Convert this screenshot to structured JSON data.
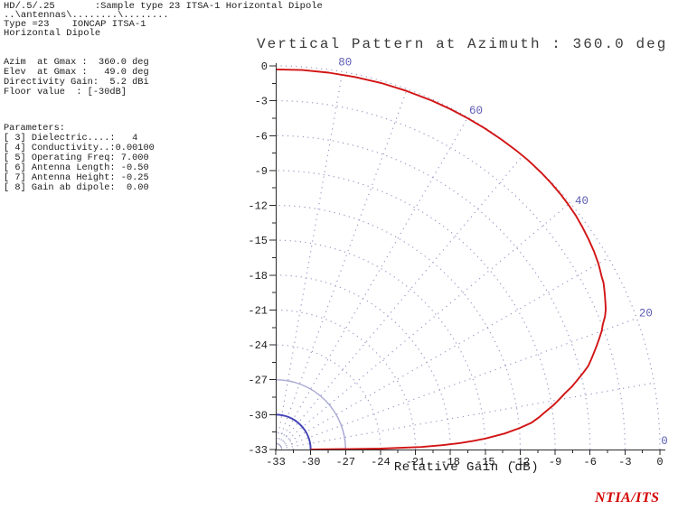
{
  "header": {
    "line1": "HD/.5/.25       :Sample type 23 ITSA-1 Horizontal Dipole",
    "line2": "..\\antennas\\........\\........",
    "line3": "Type =23    IONCAP ITSA-1",
    "line4": "Horizontal Dipole"
  },
  "info_panel": {
    "gain_lines": [
      "Azim  at Gmax :  360.0 deg",
      "Elev  at Gmax :   49.0 deg",
      "Directivity Gain:  5.2 dBi",
      "Floor value  : [-30dB]"
    ],
    "parameters_title": "Parameters:",
    "parameters": [
      "[ 3] Dielectric....:   4",
      "[ 4] Conductivity..:0.00100",
      "[ 5] Operating Freq: 7.000",
      "[ 6] Antenna Length: -0.50",
      "[ 7] Antenna Height: -0.25",
      "[ 8] Gain ab dipole:  0.00"
    ]
  },
  "chart_data": {
    "type": "line",
    "coordinate_system": "polar-quarter",
    "title": "Vertical Pattern at Azimuth : 360.0 deg",
    "xlabel": "Relative Gain (dB)",
    "radial_unit": "dB",
    "radial_range": [
      -33,
      0
    ],
    "radial_major_step": 3,
    "radial_minor_step": 1.5,
    "x_tick_labels": [
      "-33",
      "-30",
      "-27",
      "-24",
      "-21",
      "-18",
      "-15",
      "-12",
      "-9",
      "-6",
      "-3",
      "0"
    ],
    "y_tick_labels": [
      "0",
      "-3",
      "-6",
      "-9",
      "-12",
      "-15",
      "-18",
      "-21",
      "-24",
      "-27",
      "-30",
      "-33"
    ],
    "angle_unit": "deg-elevation",
    "angle_range": [
      0,
      90
    ],
    "angle_grid_step_deg": 10,
    "angle_labels": [
      {
        "angle": 80,
        "text": "80"
      },
      {
        "angle": 60,
        "text": "60"
      },
      {
        "angle": 40,
        "text": "40"
      },
      {
        "angle": 20,
        "text": "20"
      },
      {
        "angle": 0,
        "text": "0"
      }
    ],
    "dotted_rings_db": [
      0,
      -3,
      -6,
      -9,
      -12,
      -15,
      -18,
      -21,
      -24,
      -31.5
    ],
    "solid_rings": [
      {
        "db": -27,
        "color": "#a9a9d4",
        "width": 1.4
      },
      {
        "db": -30,
        "color": "#4343b6",
        "width": 2
      }
    ],
    "floor_db": -30,
    "colors": {
      "pattern": "#d21414",
      "grid_dots": "#9898c4",
      "angle_labels": "#5c5cb4",
      "axis": "#2a2a2a"
    },
    "series": [
      {
        "name": "elevation-pattern",
        "points_elev_deg_gain_db": [
          [
            0,
            -30
          ],
          [
            0.5,
            -24
          ],
          [
            1,
            -20.5
          ],
          [
            1.5,
            -18.7
          ],
          [
            2,
            -17.2
          ],
          [
            2.5,
            -16
          ],
          [
            3,
            -15
          ],
          [
            4,
            -13.3
          ],
          [
            5,
            -12
          ],
          [
            6,
            -10.9
          ],
          [
            7,
            -10.2
          ],
          [
            8,
            -9.6
          ],
          [
            9,
            -8.9
          ],
          [
            10,
            -8.3
          ],
          [
            11,
            -7.7
          ],
          [
            12,
            -7
          ],
          [
            13,
            -6.4
          ],
          [
            14,
            -5.8
          ],
          [
            15,
            -5.2
          ],
          [
            16,
            -4.8
          ],
          [
            17,
            -4.4
          ],
          [
            18,
            -4
          ],
          [
            19,
            -3.6
          ],
          [
            20,
            -3.2
          ],
          [
            21,
            -2.9
          ],
          [
            22,
            -2.5
          ],
          [
            23,
            -2.2
          ],
          [
            24,
            -2
          ],
          [
            25,
            -1.8
          ],
          [
            26,
            -1.6
          ],
          [
            27,
            -1.4
          ],
          [
            28,
            -1.3
          ],
          [
            29,
            -1.15
          ],
          [
            30,
            -1
          ],
          [
            32,
            -0.78
          ],
          [
            34,
            -0.6
          ],
          [
            36,
            -0.44
          ],
          [
            38,
            -0.3
          ],
          [
            40,
            -0.2
          ],
          [
            42,
            -0.12
          ],
          [
            44,
            -0.07
          ],
          [
            46,
            -0.03
          ],
          [
            48,
            -0.01
          ],
          [
            49,
            0
          ],
          [
            51,
            -0.01
          ],
          [
            54,
            -0.03
          ],
          [
            57,
            -0.05
          ],
          [
            60,
            -0.08
          ],
          [
            63,
            -0.1
          ],
          [
            66,
            -0.13
          ],
          [
            70,
            -0.17
          ],
          [
            74,
            -0.2
          ],
          [
            78,
            -0.24
          ],
          [
            82,
            -0.26
          ],
          [
            86,
            -0.28
          ],
          [
            90,
            -0.3
          ]
        ]
      }
    ]
  },
  "footer": {
    "brand": "NTIA/ITS",
    "brand_color": "#d40000"
  }
}
